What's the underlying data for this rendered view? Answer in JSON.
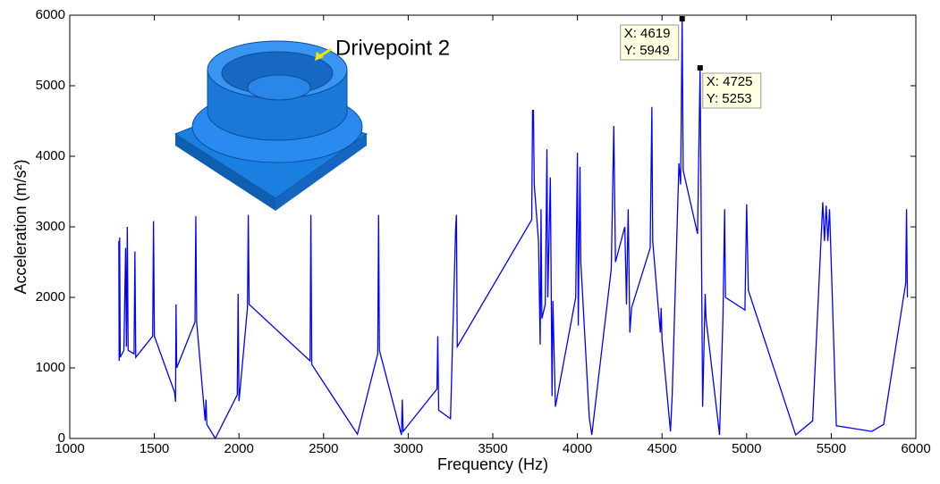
{
  "chart_data": {
    "type": "line",
    "x_label": "Frequency (Hz)",
    "y_label": "Acceleration (m/s²)",
    "inset_label": "Drivepoint 2",
    "color": "#0000ff",
    "xlim": [
      1000,
      6000
    ],
    "xticks": [
      1000,
      1500,
      2000,
      2500,
      3000,
      3500,
      4000,
      4500,
      5000,
      5500,
      6000
    ],
    "ylim": [
      0,
      6000
    ],
    "yticks": [
      0,
      1000,
      2000,
      3000,
      4000,
      5000,
      6000
    ],
    "x": [
      1290,
      1292,
      1295,
      1298,
      1320,
      1330,
      1335,
      1340,
      1345,
      1380,
      1385,
      1390,
      1490,
      1495,
      1500,
      1620,
      1625,
      1628,
      1632,
      1740,
      1745,
      1750,
      1800,
      1805,
      1810,
      1860,
      1990,
      1995,
      2000,
      2005,
      2050,
      2055,
      2060,
      2420,
      2425,
      2430,
      2700,
      2820,
      2825,
      2830,
      2960,
      2965,
      2970,
      3170,
      3175,
      3180,
      3250,
      3280,
      3285,
      3290,
      3730,
      3735,
      3740,
      3745,
      3770,
      3780,
      3785,
      3790,
      3810,
      3820,
      3825,
      3840,
      3850,
      3855,
      3870,
      3990,
      4000,
      4005,
      4015,
      4020,
      4070,
      4085,
      4200,
      4215,
      4225,
      4280,
      4290,
      4300,
      4310,
      4320,
      4430,
      4440,
      4445,
      4490,
      4495,
      4500,
      4550,
      4560,
      4600,
      4610,
      4619,
      4625,
      4710,
      4725,
      4740,
      4755,
      4760,
      4840,
      4860,
      4870,
      4875,
      4990,
      5000,
      5010,
      5290,
      5390,
      5450,
      5460,
      5470,
      5480,
      5490,
      5530,
      5740,
      5810,
      5940,
      5945,
      5950
    ],
    "values": [
      2800,
      1100,
      2850,
      1150,
      1250,
      2700,
      1300,
      3000,
      1250,
      1200,
      2650,
      1150,
      1450,
      3080,
      1450,
      650,
      520,
      1900,
      1000,
      1650,
      3150,
      1650,
      250,
      550,
      200,
      0,
      620,
      2050,
      530,
      650,
      1850,
      3170,
      1900,
      1100,
      3170,
      1050,
      60,
      1200,
      3170,
      1250,
      50,
      550,
      100,
      700,
      1450,
      400,
      280,
      2950,
      3170,
      1300,
      3100,
      4650,
      4650,
      3600,
      2800,
      1330,
      3250,
      1700,
      1900,
      4100,
      2000,
      3700,
      600,
      1950,
      450,
      2000,
      4050,
      1600,
      3850,
      2500,
      300,
      50,
      2400,
      4430,
      2500,
      3000,
      1900,
      3250,
      1500,
      1850,
      2700,
      4700,
      2800,
      1500,
      1850,
      1400,
      100,
      600,
      3900,
      3600,
      5949,
      3800,
      2900,
      5253,
      450,
      2050,
      1700,
      50,
      1700,
      3250,
      2000,
      1820,
      3320,
      2100,
      50,
      250,
      3350,
      2800,
      3300,
      2800,
      3250,
      180,
      100,
      200,
      2200,
      3250,
      2000
    ],
    "annotations": [
      {
        "x": 4619,
        "y": 5949,
        "label_x": "X: 4619",
        "label_y": "Y: 5949"
      },
      {
        "x": 4725,
        "y": 5253,
        "label_x": "X: 4725",
        "label_y": "Y: 5253"
      }
    ]
  }
}
